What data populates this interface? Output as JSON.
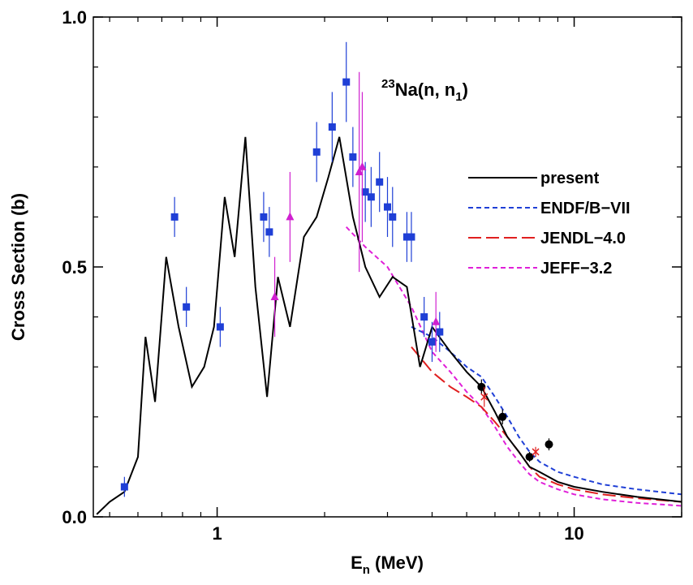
{
  "chart_data": {
    "type": "line",
    "title_main": "23",
    "title_element": "Na(n, n",
    "title_sub": "1",
    "title_close": ")",
    "xlabel_main": "E",
    "xlabel_sub": "n",
    "xlabel_rest": " (MeV)",
    "ylabel": "Cross Section (b)",
    "x_scale": "log",
    "xlim": [
      0.45,
      20
    ],
    "ylim": [
      0.0,
      1.0
    ],
    "x_ticks": [
      {
        "value": 1,
        "label": "1"
      },
      {
        "value": 10,
        "label": "10"
      }
    ],
    "y_ticks": [
      {
        "value": 0.0,
        "label": "0.0"
      },
      {
        "value": 0.5,
        "label": "0.5"
      },
      {
        "value": 1.0,
        "label": "1.0"
      }
    ],
    "legend_position": "right-middle",
    "series": [
      {
        "name": "present",
        "color": "#000000",
        "dash": "",
        "x": [
          0.46,
          0.5,
          0.55,
          0.6,
          0.63,
          0.67,
          0.72,
          0.78,
          0.85,
          0.92,
          0.98,
          1.05,
          1.12,
          1.2,
          1.28,
          1.38,
          1.48,
          1.6,
          1.75,
          1.9,
          2.05,
          2.2,
          2.4,
          2.6,
          2.85,
          3.1,
          3.4,
          3.7,
          4.0,
          4.5,
          5.0,
          5.5,
          6.0,
          6.5,
          7.0,
          7.5,
          8.0,
          9.0,
          10.0,
          12.0,
          15.0,
          20.0
        ],
        "y": [
          0.005,
          0.03,
          0.05,
          0.12,
          0.36,
          0.23,
          0.52,
          0.38,
          0.26,
          0.3,
          0.38,
          0.64,
          0.52,
          0.76,
          0.46,
          0.24,
          0.48,
          0.38,
          0.56,
          0.6,
          0.68,
          0.76,
          0.6,
          0.5,
          0.44,
          0.48,
          0.46,
          0.3,
          0.38,
          0.33,
          0.29,
          0.26,
          0.21,
          0.16,
          0.13,
          0.1,
          0.09,
          0.07,
          0.06,
          0.05,
          0.04,
          0.03
        ]
      },
      {
        "name": "ENDF/B−VII",
        "color": "#1f3fd6",
        "dash": "6,4",
        "x": [
          3.5,
          4.0,
          4.5,
          5.0,
          5.5,
          6.0,
          6.5,
          7.0,
          7.5,
          8.0,
          9.0,
          10.0,
          12.0,
          15.0,
          20.0
        ],
        "y": [
          0.38,
          0.36,
          0.33,
          0.3,
          0.28,
          0.24,
          0.2,
          0.16,
          0.13,
          0.11,
          0.09,
          0.08,
          0.065,
          0.055,
          0.045
        ]
      },
      {
        "name": "JENDL−4.0",
        "color": "#e02020",
        "dash": "16,6",
        "x": [
          3.5,
          4.0,
          4.5,
          5.0,
          5.5,
          6.0,
          6.5,
          7.0,
          7.5,
          8.0,
          9.0,
          10.0,
          12.0,
          15.0,
          20.0
        ],
        "y": [
          0.34,
          0.29,
          0.26,
          0.24,
          0.22,
          0.19,
          0.16,
          0.13,
          0.1,
          0.08,
          0.065,
          0.055,
          0.045,
          0.037,
          0.03
        ]
      },
      {
        "name": "JEFF−3.2",
        "color": "#e020d8",
        "dash": "6,4",
        "x": [
          2.3,
          2.6,
          3.0,
          3.5,
          4.0,
          4.5,
          5.0,
          5.5,
          6.0,
          6.5,
          7.0,
          7.5,
          8.0,
          9.0,
          10.0,
          12.0,
          15.0,
          20.0
        ],
        "y": [
          0.58,
          0.54,
          0.5,
          0.42,
          0.33,
          0.29,
          0.25,
          0.22,
          0.18,
          0.14,
          0.11,
          0.085,
          0.07,
          0.055,
          0.045,
          0.035,
          0.028,
          0.022
        ]
      }
    ],
    "markers": [
      {
        "type": "circle",
        "color": "#000000",
        "x": [
          5.5,
          6.3,
          7.5,
          8.5
        ],
        "y": [
          0.26,
          0.2,
          0.12,
          0.145
        ],
        "err": [
          0.015,
          0.015,
          0.01,
          0.012
        ]
      },
      {
        "type": "square",
        "color": "#1f3fd6",
        "x": [
          0.55,
          0.76,
          0.82,
          1.02,
          1.35,
          1.4,
          1.9,
          2.1,
          2.3,
          2.4,
          2.6,
          2.7,
          2.85,
          3.0,
          3.1,
          3.4,
          3.5,
          3.8,
          4.0,
          4.2
        ],
        "y": [
          0.06,
          0.6,
          0.42,
          0.38,
          0.6,
          0.57,
          0.73,
          0.78,
          0.87,
          0.72,
          0.65,
          0.64,
          0.67,
          0.62,
          0.6,
          0.56,
          0.56,
          0.4,
          0.35,
          0.37
        ],
        "err": [
          0.02,
          0.04,
          0.04,
          0.04,
          0.05,
          0.05,
          0.06,
          0.07,
          0.08,
          0.06,
          0.06,
          0.06,
          0.06,
          0.06,
          0.06,
          0.05,
          0.05,
          0.04,
          0.04,
          0.04
        ]
      },
      {
        "type": "triangle",
        "color": "#d020d0",
        "x": [
          1.45,
          1.6,
          2.5,
          2.55,
          4.1
        ],
        "y": [
          0.44,
          0.6,
          0.69,
          0.7,
          0.39
        ],
        "err": [
          0.08,
          0.09,
          0.2,
          0.15,
          0.06
        ]
      },
      {
        "type": "x",
        "color": "#e02020",
        "x": [
          5.6,
          7.8
        ],
        "y": [
          0.24,
          0.13
        ],
        "err": [
          0.02,
          0.01
        ]
      }
    ]
  }
}
